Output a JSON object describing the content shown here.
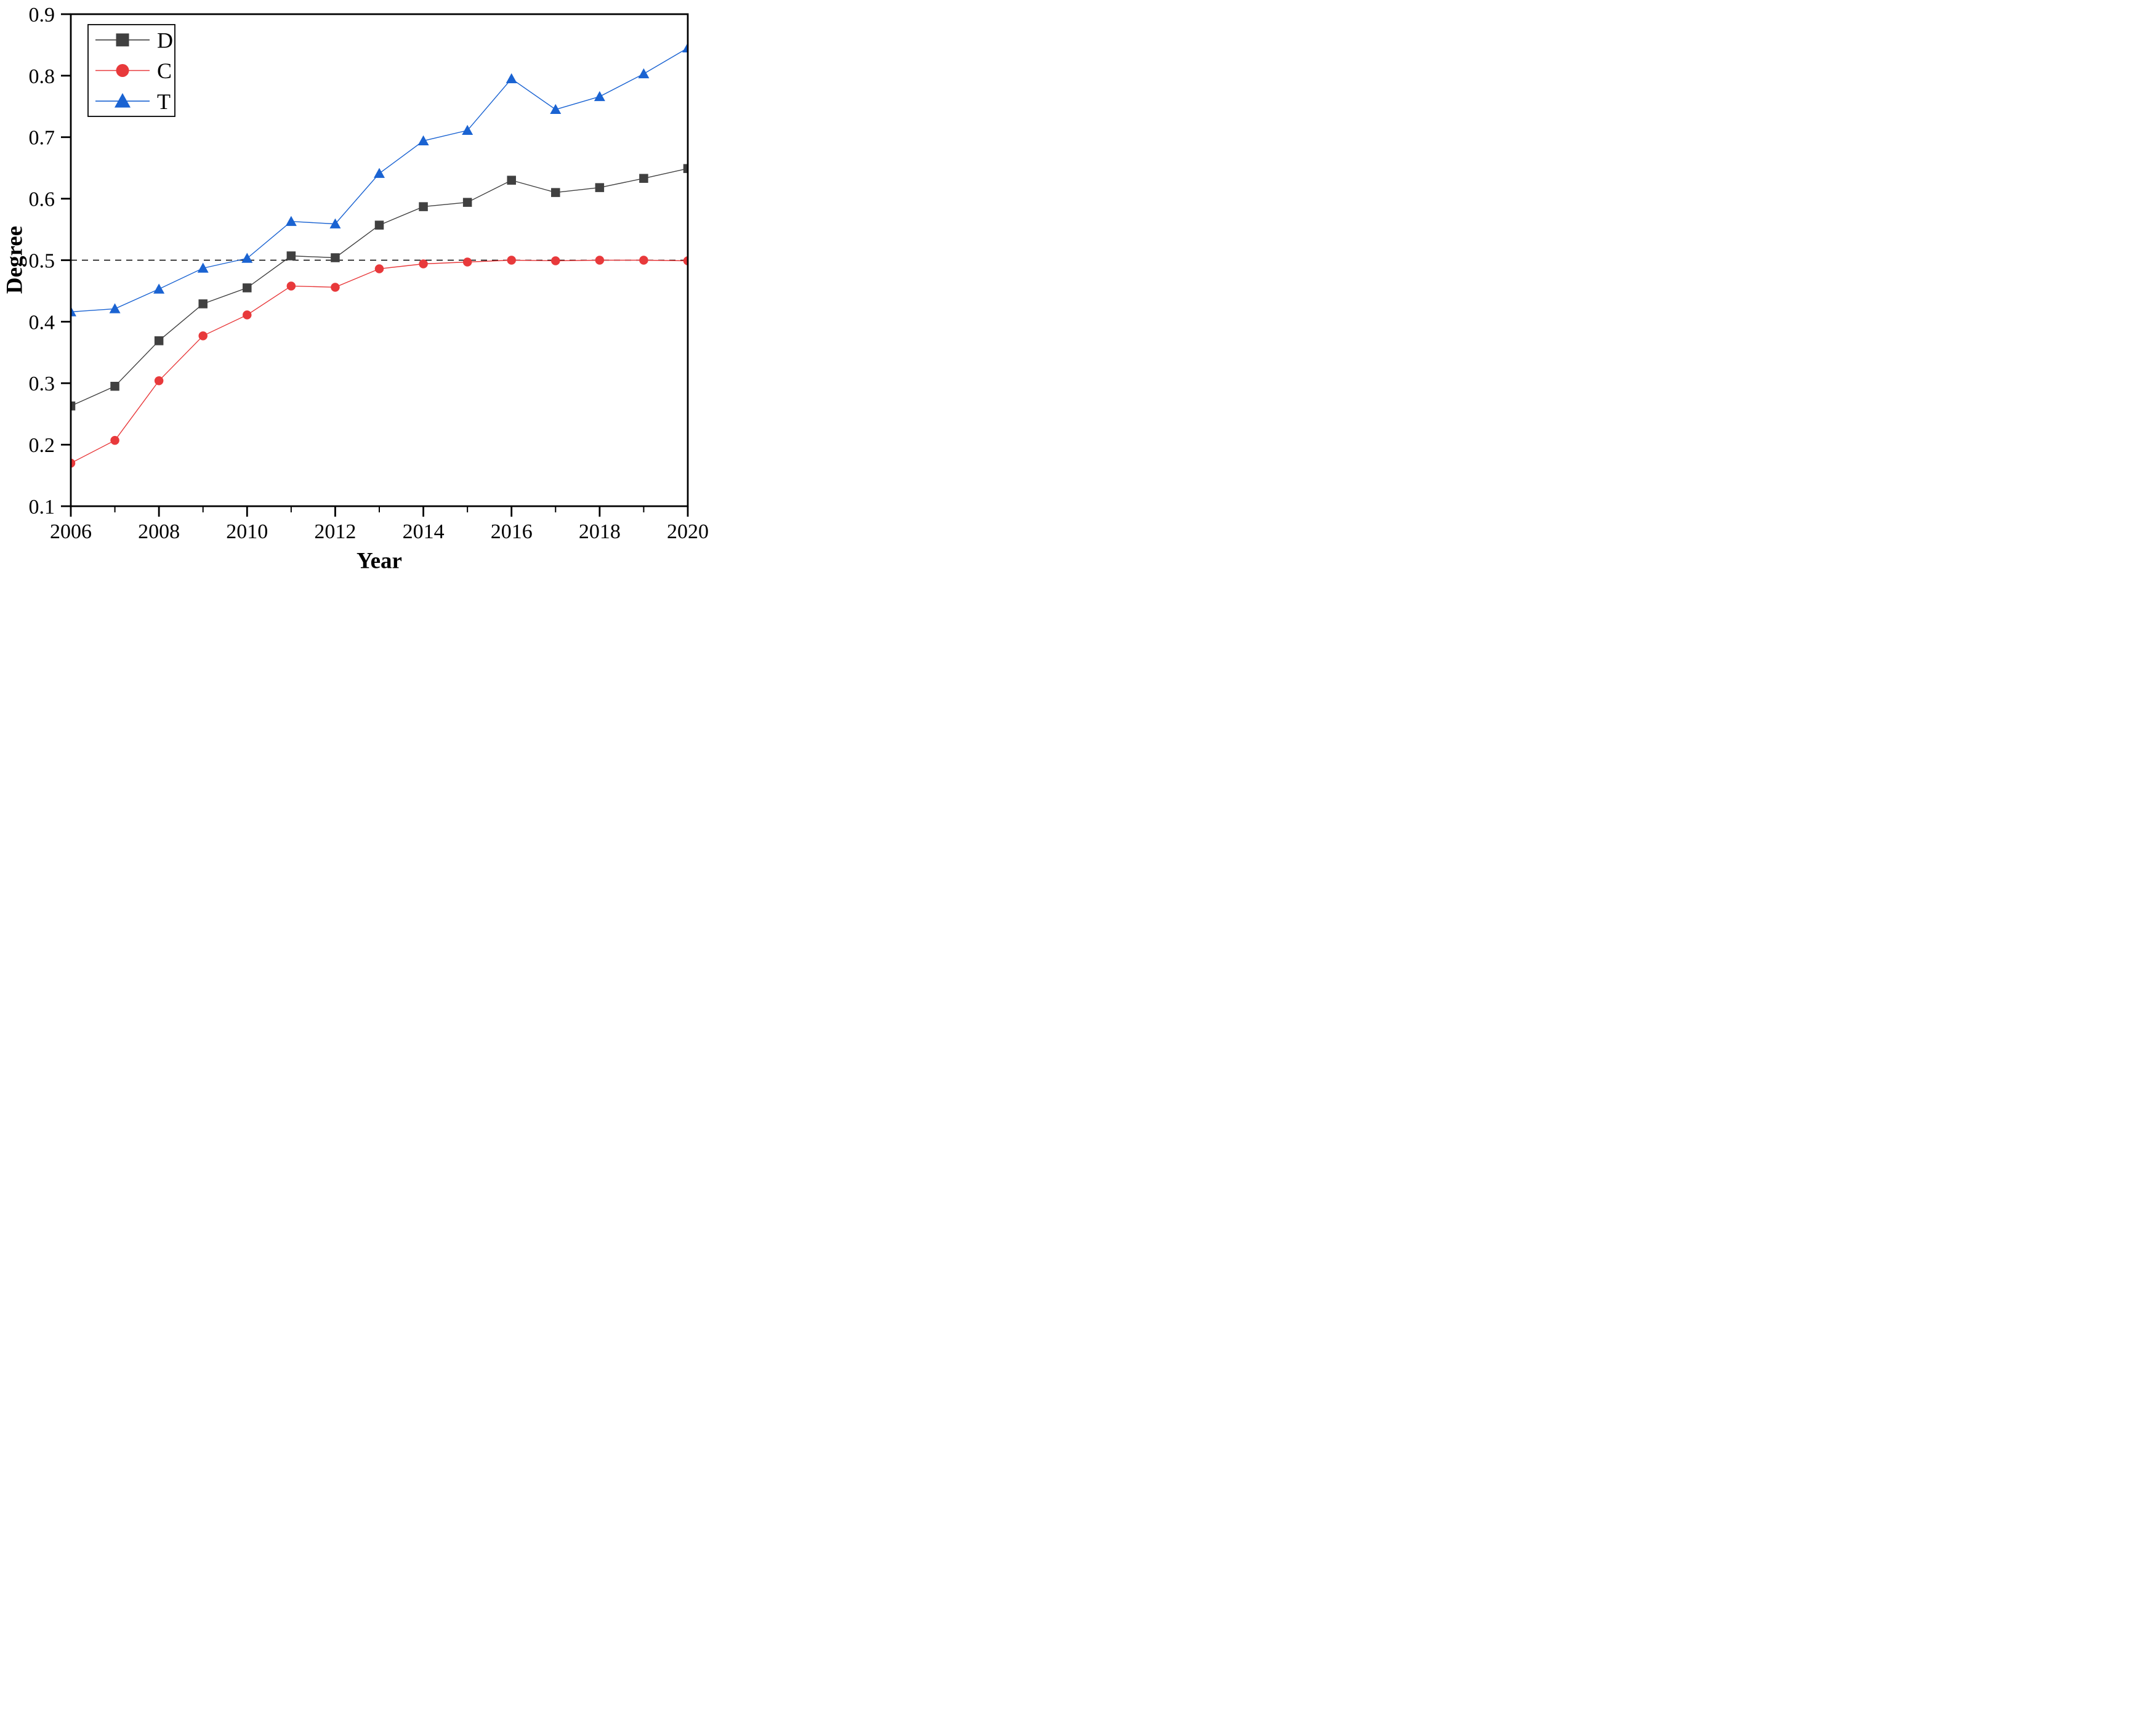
{
  "figure": {
    "background": "#ffffff",
    "frame_color": "#000000"
  },
  "chart_data": {
    "type": "line",
    "title": "",
    "xlabel": "Year",
    "ylabel": "Degree",
    "x": [
      2006,
      2007,
      2008,
      2009,
      2010,
      2011,
      2012,
      2013,
      2014,
      2015,
      2016,
      2017,
      2018,
      2019,
      2020
    ],
    "xlim": [
      2006,
      2020
    ],
    "ylim": [
      0.1,
      0.9
    ],
    "xticks_major": [
      2006,
      2008,
      2010,
      2012,
      2014,
      2016,
      2018,
      2020
    ],
    "xticks_minor": [
      2007,
      2009,
      2011,
      2013,
      2015,
      2017,
      2019
    ],
    "yticks": [
      0.1,
      0.2,
      0.3,
      0.4,
      0.5,
      0.6,
      0.7,
      0.8,
      0.9
    ],
    "grid": false,
    "frame": "box",
    "reference_line": {
      "y": 0.5,
      "style": "dashed",
      "color": "#000000"
    },
    "legend": {
      "position": "top-left",
      "entries": [
        "D",
        "C",
        "T"
      ]
    },
    "series": [
      {
        "name": "D",
        "marker": "square",
        "color": "#404040",
        "values": [
          0.263,
          0.295,
          0.369,
          0.429,
          0.455,
          0.507,
          0.504,
          0.557,
          0.587,
          0.594,
          0.63,
          0.61,
          0.618,
          0.633,
          0.649
        ]
      },
      {
        "name": "C",
        "marker": "circle",
        "color": "#e8393b",
        "values": [
          0.17,
          0.207,
          0.304,
          0.377,
          0.411,
          0.458,
          0.456,
          0.486,
          0.494,
          0.497,
          0.5,
          0.499,
          0.5,
          0.5,
          0.499
        ]
      },
      {
        "name": "T",
        "marker": "triangle",
        "color": "#1a63d2",
        "values": [
          0.416,
          0.421,
          0.453,
          0.487,
          0.503,
          0.563,
          0.559,
          0.641,
          0.694,
          0.711,
          0.795,
          0.745,
          0.766,
          0.803,
          0.845
        ]
      }
    ]
  }
}
